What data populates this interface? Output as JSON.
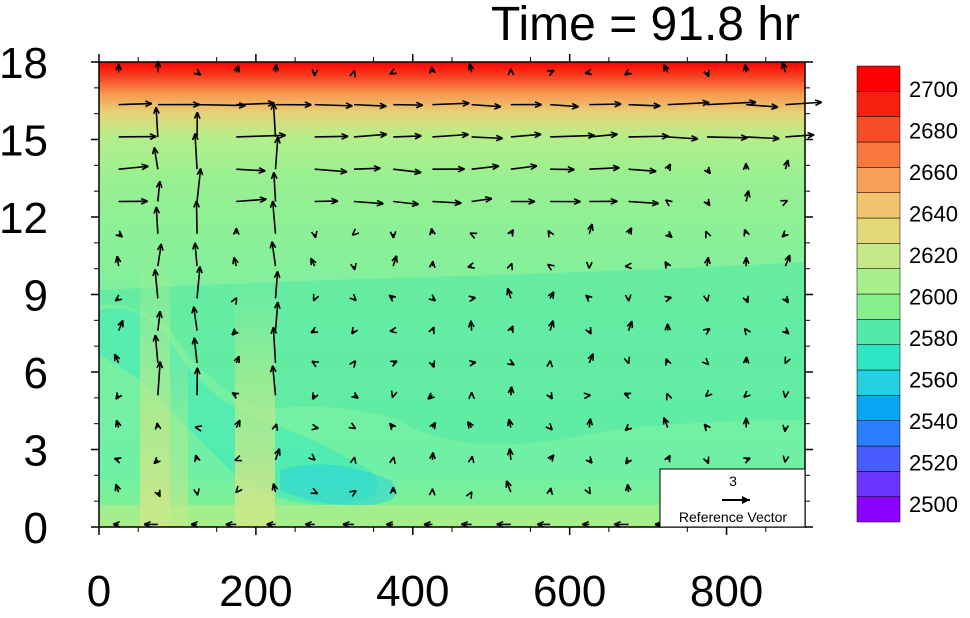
{
  "chart_data": {
    "type": "heatmap",
    "title": "Time = 91.8 hr",
    "xlabel": "",
    "ylabel": "",
    "xlim": [
      0,
      900
    ],
    "ylim": [
      0,
      18
    ],
    "x_ticks": [
      0,
      200,
      400,
      600,
      800
    ],
    "x_tick_labels": [
      "0",
      "200",
      "400",
      "600",
      "800"
    ],
    "y_ticks": [
      0,
      3,
      6,
      9,
      12,
      15,
      18
    ],
    "y_tick_labels": [
      "0",
      "3",
      "6",
      "9",
      "12",
      "15",
      "18"
    ],
    "colorbar": {
      "levels": [
        2500,
        2520,
        2540,
        2560,
        2580,
        2600,
        2620,
        2640,
        2660,
        2680,
        2700
      ],
      "labels": [
        "2700",
        "2680",
        "2660",
        "2640",
        "2620",
        "2600",
        "2580",
        "2560",
        "2540",
        "2520",
        "2500"
      ],
      "colors": [
        "#8a00ff",
        "#6a35ff",
        "#4a5cff",
        "#2a7fff",
        "#06a6f0",
        "#22d0e0",
        "#2ee6c4",
        "#52eaa6",
        "#86f08c",
        "#a8f08c",
        "#c6e888",
        "#e2d878",
        "#f2c46e",
        "#f7a058",
        "#f97840",
        "#f74c28",
        "#f42010",
        "#ff0000"
      ]
    },
    "field_description_values": {
      "background_level": 2590,
      "low_pocket_level": 2575,
      "upper_gradient_start_km": 15.0,
      "top_level": 2705
    },
    "reference_vector": {
      "magnitude": "3",
      "label": "Reference Vector"
    },
    "vector_grid": {
      "x_start": 25,
      "x_step": 50,
      "nx": 18,
      "y_start": 0.1,
      "y_step": 1.25,
      "ny": 15
    }
  }
}
